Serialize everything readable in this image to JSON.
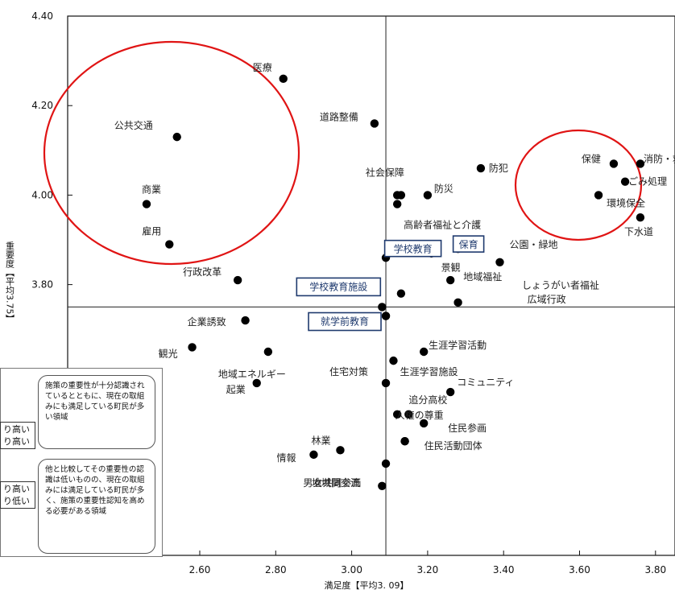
{
  "chart_data": {
    "type": "scatter",
    "title": "",
    "xlabel": "満足度【平均3. 09】",
    "ylabel": "重要度【平均3.75】",
    "xlim": [
      2.45,
      4.0
    ],
    "ylim": [
      3.45,
      4.4
    ],
    "x_ticks": [
      "2.60",
      "2.80",
      "3.00",
      "3.20",
      "3.40",
      "3.60",
      "3.80",
      "4.00"
    ],
    "y_ticks": [
      "4.40",
      "4.20",
      "4.00",
      "3.80"
    ],
    "mean_x": 3.09,
    "mean_y": 3.75,
    "points": [
      {
        "label": "医療",
        "x": 2.82,
        "y": 4.26
      },
      {
        "label": "公共交通",
        "x": 2.54,
        "y": 4.13
      },
      {
        "label": "商業",
        "x": 2.46,
        "y": 3.98
      },
      {
        "label": "雇用",
        "x": 2.52,
        "y": 3.89
      },
      {
        "label": "行政改革",
        "x": 2.7,
        "y": 3.81
      },
      {
        "label": "道路整備",
        "x": 3.06,
        "y": 4.16
      },
      {
        "label": "防犯",
        "x": 3.34,
        "y": 4.06
      },
      {
        "label": "社会保障",
        "x": 3.13,
        "y": 4.0
      },
      {
        "label": "",
        "x": 3.12,
        "y": 4.0
      },
      {
        "label": "防災",
        "x": 3.2,
        "y": 4.0
      },
      {
        "label": "保健",
        "x": 3.69,
        "y": 4.07
      },
      {
        "label": "消防・救急",
        "x": 3.76,
        "y": 4.07
      },
      {
        "label": "ごみ処理",
        "x": 3.72,
        "y": 4.03
      },
      {
        "label": "環境保全",
        "x": 3.65,
        "y": 4.0
      },
      {
        "label": "水道",
        "x": 3.88,
        "y": 3.98
      },
      {
        "label": "下水道",
        "x": 3.76,
        "y": 3.95
      },
      {
        "label": "高齢者福祉と介護",
        "x": 3.12,
        "y": 3.98
      },
      {
        "label": "保育",
        "x": 3.28,
        "y": 3.88
      },
      {
        "label": "学校教育",
        "x": 3.21,
        "y": 3.87
      },
      {
        "label": "",
        "x": 3.09,
        "y": 3.86
      },
      {
        "label": "景観",
        "x": 3.21,
        "y": 3.87
      },
      {
        "label": "公園・緑地",
        "x": 3.39,
        "y": 3.85
      },
      {
        "label": "地域福祉",
        "x": 3.26,
        "y": 3.81
      },
      {
        "label": "しょうがい者福祉",
        "x": 3.13,
        "y": 3.78
      },
      {
        "label": "広域行政",
        "x": 3.28,
        "y": 3.76
      },
      {
        "label": "学校教育施設",
        "x": 3.08,
        "y": 3.75
      },
      {
        "label": "",
        "x": 3.09,
        "y": 3.73
      },
      {
        "label": "企業誘致",
        "x": 2.72,
        "y": 3.72
      },
      {
        "label": "農業",
        "x": 2.99,
        "y": 3.72
      },
      {
        "label": "就学前教育",
        "x": 3.09,
        "y": 3.73
      },
      {
        "label": "観光",
        "x": 2.58,
        "y": 3.66
      },
      {
        "label": "地域エネルギー",
        "x": 2.78,
        "y": 3.65
      },
      {
        "label": "生涯学習活動",
        "x": 3.19,
        "y": 3.65
      },
      {
        "label": "生涯学習施設",
        "x": 3.11,
        "y": 3.63
      },
      {
        "label": "住宅対策",
        "x": 3.09,
        "y": 3.58
      },
      {
        "label": "起業",
        "x": 2.75,
        "y": 3.58
      },
      {
        "label": "コミュニティ",
        "x": 3.26,
        "y": 3.56
      },
      {
        "label": "追分高校",
        "x": 3.15,
        "y": 3.51
      },
      {
        "label": "",
        "x": 3.12,
        "y": 3.51
      },
      {
        "label": "住民参画",
        "x": 3.19,
        "y": 3.49
      },
      {
        "label": "人権の尊重",
        "x": 3.14,
        "y": 3.45
      },
      {
        "label": "住民活動団体",
        "x": 3.14,
        "y": 3.45
      },
      {
        "label": "林業",
        "x": 2.97,
        "y": 3.43
      },
      {
        "label": "情報",
        "x": 2.9,
        "y": 3.42
      },
      {
        "label": "地域間交流",
        "x": 3.09,
        "y": 3.4
      },
      {
        "label": "男女共同参画",
        "x": 3.08,
        "y": 3.35
      }
    ]
  },
  "legend": {
    "callout_top": "施策の重要性が十分認識されているとともに、現在の取組みにも満足している町民が多い領域",
    "callout_bottom": "他と比較してその重要性の認識は低いものの、現在の取組みには満足している町民が多く、施策の重要性認知を高める必要がある領域",
    "mini_top_1": "り高い",
    "mini_top_2": "り高い",
    "mini_bottom_1": "り高い",
    "mini_bottom_2": "り低い"
  }
}
